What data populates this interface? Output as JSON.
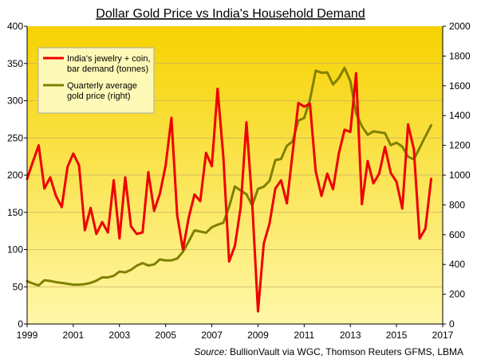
{
  "chart_data": {
    "type": "line",
    "title": "Dollar Gold Price vs India's Household Demand",
    "source_prefix": "Source:",
    "source_text": " BullionVault via WGC, Thomson Reuters GFMS, LBMA",
    "x_range": [
      1999,
      2017
    ],
    "xticks": [
      "1999",
      "2001",
      "2003",
      "2005",
      "2007",
      "2009",
      "2011",
      "2013",
      "2015",
      "2017"
    ],
    "y_left": {
      "ylim": [
        0,
        400
      ],
      "ticks": [
        "0",
        "50",
        "100",
        "150",
        "200",
        "250",
        "300",
        "350",
        "400"
      ]
    },
    "y_right": {
      "ylim": [
        0,
        2000
      ],
      "ticks": [
        "0",
        "200",
        "400",
        "600",
        "800",
        "1000",
        "1200",
        "1400",
        "1600",
        "1800",
        "2000"
      ]
    },
    "grid": "horizontal",
    "legend_position": "top-left",
    "background_gradient": [
      "#f6d200",
      "#fff7a8"
    ],
    "series": [
      {
        "name_lines": [
          "India's jewelry + coin,",
          "bar demand (tonnes)"
        ],
        "axis": "left",
        "color": "#ee0000",
        "x": [
          1999.0,
          1999.25,
          1999.5,
          1999.75,
          2000.0,
          2000.25,
          2000.5,
          2000.75,
          2001.0,
          2001.25,
          2001.5,
          2001.75,
          2002.0,
          2002.25,
          2002.5,
          2002.75,
          2003.0,
          2003.25,
          2003.5,
          2003.75,
          2004.0,
          2004.25,
          2004.5,
          2004.75,
          2005.0,
          2005.25,
          2005.5,
          2005.75,
          2006.0,
          2006.25,
          2006.5,
          2006.75,
          2007.0,
          2007.25,
          2007.5,
          2007.75,
          2008.0,
          2008.25,
          2008.5,
          2008.75,
          2009.0,
          2009.25,
          2009.5,
          2009.75,
          2010.0,
          2010.25,
          2010.5,
          2010.75,
          2011.0,
          2011.25,
          2011.5,
          2011.75,
          2012.0,
          2012.25,
          2012.5,
          2012.75,
          2013.0,
          2013.25,
          2013.5,
          2013.75,
          2014.0,
          2014.25,
          2014.5,
          2014.75,
          2015.0,
          2015.25,
          2015.5,
          2015.75,
          2016.0,
          2016.25,
          2016.5
        ],
        "values": [
          195,
          218,
          240,
          182,
          197,
          172,
          157,
          211,
          229,
          213,
          126,
          156,
          121,
          137,
          123,
          193,
          115,
          197,
          131,
          121,
          123,
          204,
          152,
          175,
          213,
          277,
          146,
          100,
          143,
          174,
          165,
          230,
          212,
          316,
          224,
          84,
          105,
          157,
          271,
          162,
          17,
          108,
          135,
          182,
          193,
          162,
          230,
          297,
          292,
          296,
          205,
          172,
          202,
          181,
          229,
          261,
          258,
          337,
          161,
          219,
          189,
          202,
          238,
          203,
          191,
          155,
          268,
          235,
          115,
          128,
          195
        ]
      },
      {
        "name_lines": [
          "Quarterly average",
          "gold price (right)"
        ],
        "axis": "right",
        "color": "#808000",
        "x": [
          1999.0,
          1999.25,
          1999.5,
          1999.75,
          2000.0,
          2000.25,
          2000.5,
          2000.75,
          2001.0,
          2001.25,
          2001.5,
          2001.75,
          2002.0,
          2002.25,
          2002.5,
          2002.75,
          2003.0,
          2003.25,
          2003.5,
          2003.75,
          2004.0,
          2004.25,
          2004.5,
          2004.75,
          2005.0,
          2005.25,
          2005.5,
          2005.75,
          2006.0,
          2006.25,
          2006.5,
          2006.75,
          2007.0,
          2007.25,
          2007.5,
          2007.75,
          2008.0,
          2008.25,
          2008.5,
          2008.75,
          2009.0,
          2009.25,
          2009.5,
          2009.75,
          2010.0,
          2010.25,
          2010.5,
          2010.75,
          2011.0,
          2011.25,
          2011.5,
          2011.75,
          2012.0,
          2012.25,
          2012.5,
          2012.75,
          2013.0,
          2013.25,
          2013.5,
          2013.75,
          2014.0,
          2014.25,
          2014.5,
          2014.75,
          2015.0,
          2015.25,
          2015.5,
          2015.75,
          2016.0,
          2016.25,
          2016.5
        ],
        "values": [
          287,
          272,
          259,
          294,
          289,
          281,
          276,
          270,
          264,
          264,
          268,
          276,
          291,
          313,
          313,
          323,
          352,
          347,
          364,
          392,
          409,
          393,
          400,
          434,
          427,
          427,
          440,
          485,
          555,
          629,
          621,
          613,
          650,
          667,
          680,
          788,
          924,
          896,
          872,
          796,
          908,
          922,
          962,
          1101,
          1109,
          1197,
          1227,
          1367,
          1384,
          1506,
          1702,
          1688,
          1690,
          1609,
          1652,
          1721,
          1631,
          1415,
          1328,
          1271,
          1294,
          1288,
          1282,
          1201,
          1218,
          1192,
          1124,
          1106,
          1183,
          1260,
          1335
        ]
      }
    ]
  }
}
